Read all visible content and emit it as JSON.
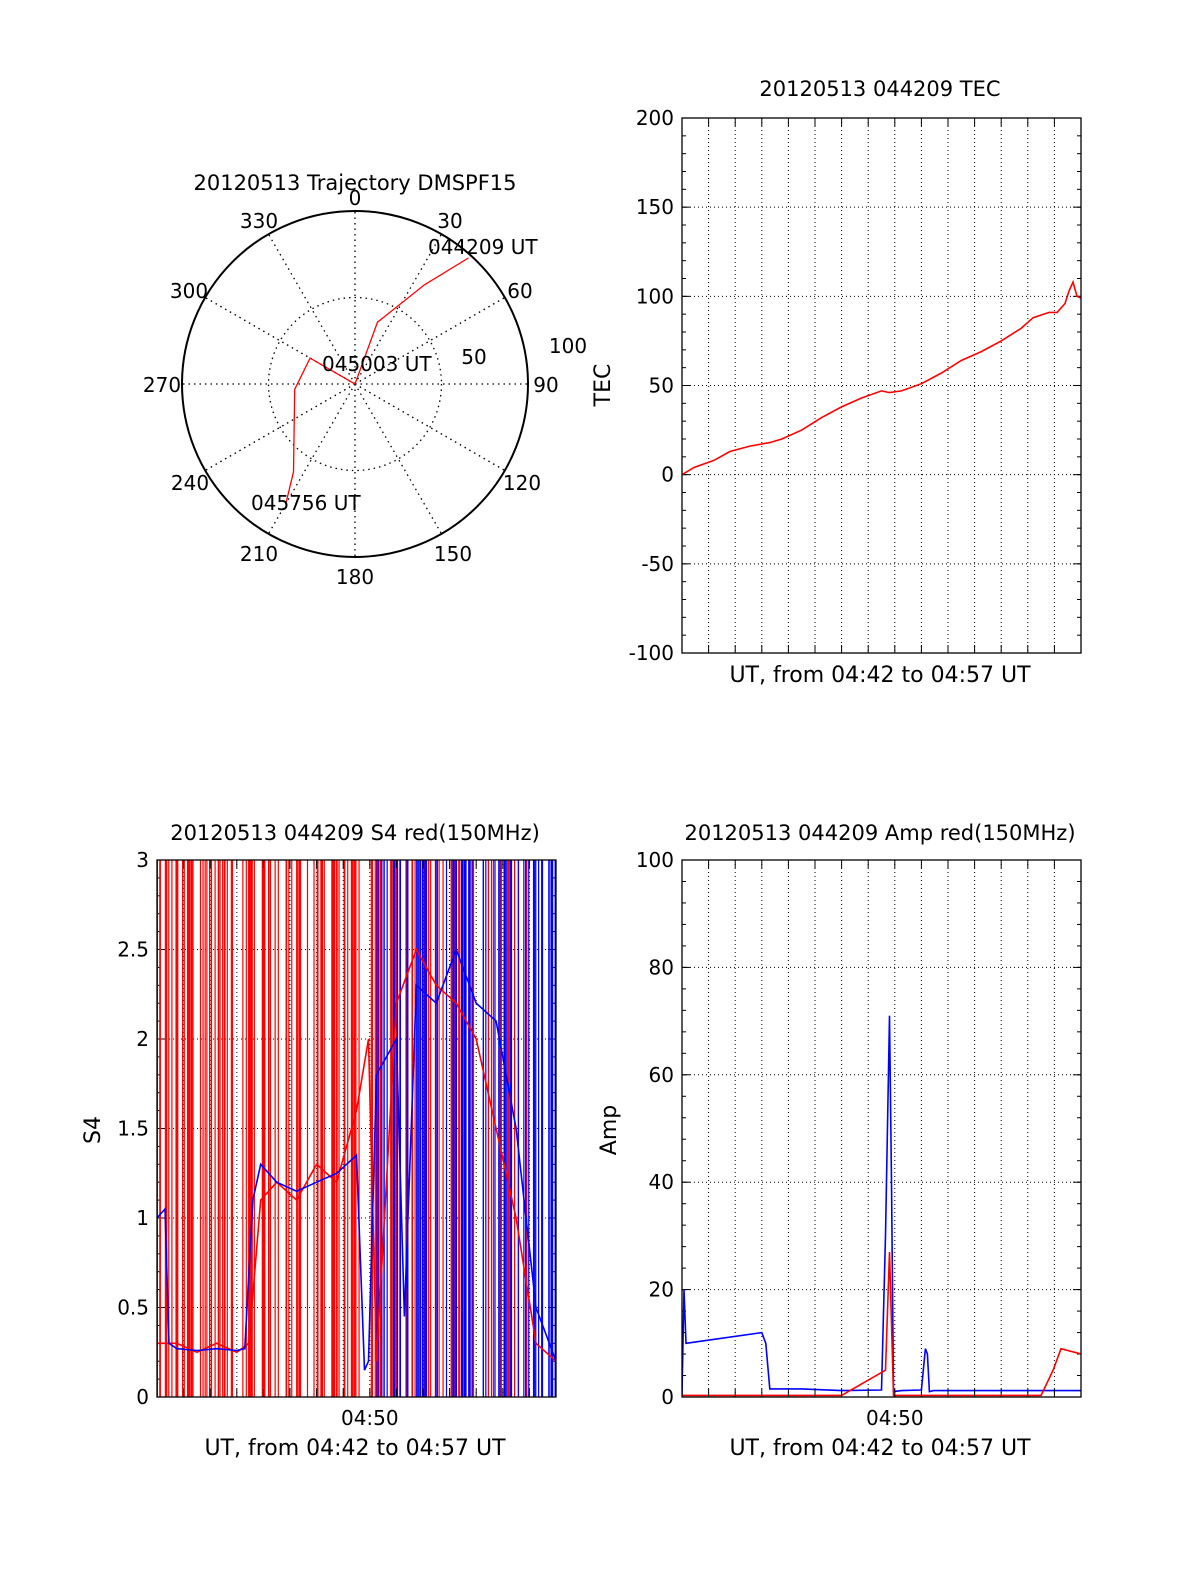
{
  "chart_data": [
    {
      "type": "polar",
      "title": "20120513 Trajectory DMSPF15",
      "angle_ticks": [
        "0",
        "30",
        "60",
        "90",
        "120",
        "150",
        "180",
        "210",
        "240",
        "270",
        "300",
        "330"
      ],
      "radial_ticks": [
        "50",
        "100"
      ],
      "rmax": 100,
      "series": [
        {
          "color": "#ff0000",
          "points": [
            [
              42,
              98
            ],
            [
              35,
              70
            ],
            [
              20,
              38
            ],
            [
              0,
              0
            ],
            [
              -60,
              30
            ],
            [
              -95,
              35
            ],
            [
              -145,
              62
            ],
            [
              -150,
              80
            ]
          ]
        }
      ],
      "annotations": [
        {
          "text": "044209 UT",
          "az": 42,
          "r": 98
        },
        {
          "text": "045003 UT",
          "az": 0,
          "r": 0
        },
        {
          "text": "045756 UT",
          "az": -150,
          "r": 80
        }
      ]
    },
    {
      "type": "line",
      "title": "20120513 044209 TEC",
      "xlabel": "UT, from 04:42 to 04:57 UT",
      "ylabel": "TEC",
      "ylim": [
        -100,
        200
      ],
      "yticks": [
        "-100",
        "-50",
        "0",
        "50",
        "100",
        "150",
        "200"
      ],
      "series": [
        {
          "color": "#ff0000",
          "x": [
            0,
            0.03,
            0.08,
            0.12,
            0.17,
            0.22,
            0.25,
            0.3,
            0.35,
            0.4,
            0.45,
            0.5,
            0.52,
            0.55,
            0.6,
            0.65,
            0.7,
            0.75,
            0.8,
            0.85,
            0.88,
            0.92,
            0.94,
            0.96,
            0.97,
            0.98,
            0.99,
            1.0
          ],
          "y": [
            0,
            4,
            8,
            13,
            16,
            18,
            20,
            25,
            32,
            38,
            43,
            47,
            46,
            47,
            51,
            57,
            64,
            69,
            75,
            82,
            88,
            91,
            91,
            96,
            103,
            108,
            100,
            99
          ]
        }
      ]
    },
    {
      "type": "line",
      "title": "20120513 044209 S4 red(150MHz)",
      "xlabel": "UT, from 04:42 to 04:57 UT",
      "ylabel": "S4",
      "ylim": [
        0,
        3
      ],
      "yticks": [
        "0",
        "0.5",
        "1",
        "1.5",
        "2",
        "2.5",
        "3"
      ],
      "xticks": [
        "04:50"
      ],
      "series": [
        {
          "color": "#ff0000",
          "x": [
            0,
            0.05,
            0.1,
            0.15,
            0.2,
            0.23,
            0.26,
            0.3,
            0.35,
            0.4,
            0.45,
            0.5,
            0.53,
            0.55,
            0.6,
            0.65,
            0.7,
            0.75,
            0.8,
            0.85,
            0.9,
            0.95,
            1.0
          ],
          "y": [
            0.3,
            0.3,
            0.25,
            0.3,
            0.25,
            0.3,
            1.1,
            1.2,
            1.1,
            1.3,
            1.2,
            1.6,
            2.0,
            0.2,
            2.2,
            2.5,
            2.3,
            2.2,
            2.0,
            1.5,
            1.0,
            0.3,
            0.2
          ]
        },
        {
          "color": "#0000ff",
          "x": [
            0,
            0.02,
            0.03,
            0.05,
            0.1,
            0.15,
            0.2,
            0.22,
            0.24,
            0.26,
            0.3,
            0.35,
            0.4,
            0.45,
            0.5,
            0.52,
            0.53,
            0.55,
            0.6,
            0.62,
            0.65,
            0.7,
            0.75,
            0.8,
            0.85,
            0.9,
            0.95,
            1.0
          ],
          "y": [
            1.0,
            1.05,
            0.3,
            0.27,
            0.26,
            0.27,
            0.26,
            0.27,
            1.1,
            1.3,
            1.2,
            1.15,
            1.2,
            1.25,
            1.35,
            0.15,
            0.2,
            1.8,
            2.0,
            0.45,
            2.3,
            2.2,
            2.5,
            2.2,
            2.1,
            1.5,
            0.5,
            0.2
          ]
        }
      ]
    },
    {
      "type": "line",
      "title": "20120513 044209 Amp red(150MHz)",
      "xlabel": "UT, from 04:42 to 04:57 UT",
      "ylabel": "Amp",
      "ylim": [
        0,
        100
      ],
      "yticks": [
        "0",
        "20",
        "40",
        "60",
        "80",
        "100"
      ],
      "xticks": [
        "04:50"
      ],
      "series": [
        {
          "color": "#0000ff",
          "x": [
            0,
            0.005,
            0.01,
            0.2,
            0.21,
            0.22,
            0.3,
            0.4,
            0.5,
            0.51,
            0.52,
            0.525,
            0.53,
            0.55,
            0.6,
            0.61,
            0.615,
            0.62,
            0.63,
            0.64,
            0.7,
            0.8,
            0.9,
            1.0
          ],
          "y": [
            0.5,
            20,
            10,
            12,
            10,
            1.5,
            1.5,
            1.2,
            1.3,
            30,
            71,
            40,
            1,
            1.2,
            1.3,
            9,
            8,
            1,
            1.2,
            1.2,
            1.2,
            1.2,
            1.2,
            1.2
          ]
        },
        {
          "color": "#ff0000",
          "x": [
            0,
            0.2,
            0.4,
            0.51,
            0.52,
            0.53,
            0.6,
            0.9,
            0.93,
            0.95,
            1.0
          ],
          "y": [
            0.3,
            0.3,
            0.3,
            5,
            27,
            0.3,
            0.3,
            0.3,
            5,
            9,
            8
          ]
        }
      ]
    }
  ]
}
